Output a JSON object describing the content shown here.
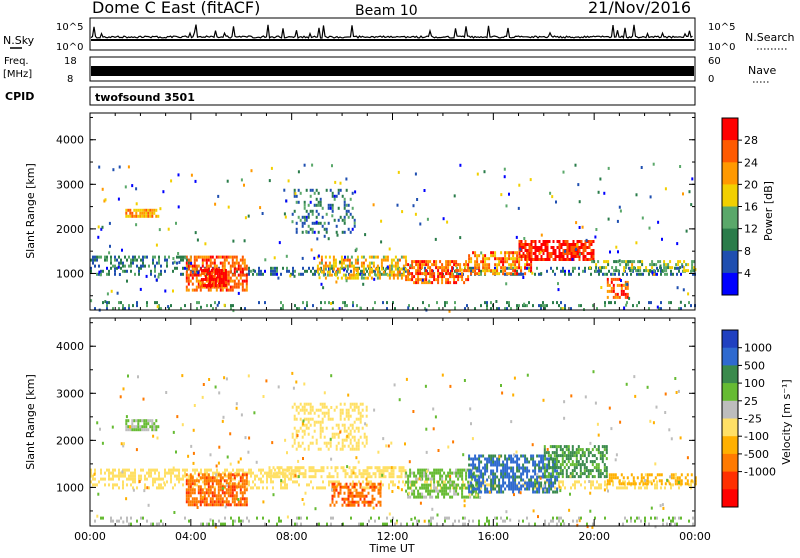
{
  "header": {
    "station": "Dome C East (fitACF)",
    "beam": "Beam 10",
    "date": "21/Nov/2016"
  },
  "panels": {
    "nsky_label": "N.Sky",
    "nsky_ticks": [
      "10^5",
      "10^0"
    ],
    "nsearch_label": "N.Search",
    "nsearch_ticks": [
      "10^5",
      "10^0"
    ],
    "freq_label_1": "Freq.",
    "freq_label_2": "[MHz]",
    "freq_ticks": [
      "18",
      "8"
    ],
    "nave_label": "Nave",
    "nave_ticks": [
      "60",
      "0"
    ],
    "cpid_label": "CPID",
    "cpid_value": "twofsound 3501"
  },
  "colors": {
    "power_scale": [
      "#0000ff",
      "#1f4fb0",
      "#2a7c4a",
      "#5aa86a",
      "#f2d000",
      "#ff9900",
      "#ff5a00",
      "#ff0000"
    ],
    "velocity_scale": [
      "#2040c0",
      "#2f6ad0",
      "#3a8a4c",
      "#66bb33",
      "#bdbdbd",
      "#ffe066",
      "#ffb000",
      "#ff7a00",
      "#ff3000",
      "#ff0000"
    ]
  },
  "chart_data": [
    {
      "type": "heatmap",
      "name": "power",
      "ylabel": "Slant Range [km]",
      "ylim": [
        180,
        4600
      ],
      "yticks": [
        "1000",
        "2000",
        "3000",
        "4000"
      ],
      "xlim": [
        "00:00",
        "24:00"
      ],
      "colorbar_label": "Power [dB]",
      "colorbar_ticks": [
        "4",
        "8",
        "12",
        "16",
        "20",
        "24",
        "28"
      ],
      "colorbar_range": [
        0,
        30
      ],
      "regions": [
        {
          "t0": 0.0,
          "t1": 24.0,
          "r0": 1000,
          "r1": 1150,
          "value": 8,
          "density": 0.35
        },
        {
          "t0": 0.0,
          "t1": 4.0,
          "r0": 1150,
          "r1": 1400,
          "value": 10,
          "density": 0.4
        },
        {
          "t0": 1.4,
          "t1": 2.7,
          "r0": 2250,
          "r1": 2450,
          "value": 20,
          "density": 0.8
        },
        {
          "t0": 3.8,
          "t1": 6.2,
          "r0": 600,
          "r1": 1400,
          "value": 24,
          "density": 0.7
        },
        {
          "t0": 4.4,
          "t1": 5.4,
          "r0": 700,
          "r1": 1100,
          "value": 28,
          "density": 0.8
        },
        {
          "t0": 8.0,
          "t1": 10.5,
          "r0": 1900,
          "r1": 2900,
          "value": 8,
          "density": 0.25
        },
        {
          "t0": 9.0,
          "t1": 12.5,
          "r0": 900,
          "r1": 1400,
          "value": 18,
          "density": 0.55
        },
        {
          "t0": 12.5,
          "t1": 15.0,
          "r0": 800,
          "r1": 1300,
          "value": 24,
          "density": 0.6
        },
        {
          "t0": 15.0,
          "t1": 17.5,
          "r0": 1000,
          "r1": 1500,
          "value": 22,
          "density": 0.6
        },
        {
          "t0": 17.0,
          "t1": 20.0,
          "r0": 1300,
          "r1": 1750,
          "value": 28,
          "density": 0.7
        },
        {
          "t0": 19.8,
          "t1": 24.0,
          "r0": 1050,
          "r1": 1300,
          "value": 14,
          "density": 0.45
        },
        {
          "t0": 20.5,
          "t1": 21.3,
          "r0": 450,
          "r1": 900,
          "value": 24,
          "density": 0.5
        },
        {
          "t0": 0.0,
          "t1": 24.0,
          "r0": 220,
          "r1": 380,
          "value": 10,
          "density": 0.2
        }
      ]
    },
    {
      "type": "heatmap",
      "name": "velocity",
      "ylabel": "Slant Range [km]",
      "xlabel": "Time UT",
      "ylim": [
        180,
        4600
      ],
      "yticks": [
        "1000",
        "2000",
        "3000",
        "4000"
      ],
      "xticks": [
        "00:00",
        "04:00",
        "08:00",
        "12:00",
        "16:00",
        "20:00",
        "00:00"
      ],
      "xlim": [
        "00:00",
        "24:00"
      ],
      "colorbar_label": "Velocity [m s⁻¹]",
      "colorbar_ticks": [
        "1000",
        "500",
        "100",
        "25",
        "-25",
        "-100",
        "-500",
        "-1000"
      ],
      "regions": [
        {
          "t0": 0.0,
          "t1": 24.0,
          "r0": 1000,
          "r1": 1150,
          "value": 0,
          "density": 0.35
        },
        {
          "t0": 0.0,
          "t1": 8.0,
          "r0": 1200,
          "r1": 1400,
          "value": 0,
          "density": 0.55
        },
        {
          "t0": 1.4,
          "t1": 2.7,
          "r0": 2250,
          "r1": 2450,
          "value": 100,
          "density": 0.8
        },
        {
          "t0": 3.8,
          "t1": 6.2,
          "r0": 600,
          "r1": 1300,
          "value": -200,
          "density": 0.7
        },
        {
          "t0": 8.0,
          "t1": 11.0,
          "r0": 1800,
          "r1": 2800,
          "value": 0,
          "density": 0.35
        },
        {
          "t0": 7.0,
          "t1": 12.5,
          "r0": 1200,
          "r1": 1450,
          "value": 0,
          "density": 0.55
        },
        {
          "t0": 9.5,
          "t1": 11.5,
          "r0": 600,
          "r1": 1100,
          "value": -200,
          "density": 0.55
        },
        {
          "t0": 12.5,
          "t1": 15.5,
          "r0": 800,
          "r1": 1400,
          "value": 150,
          "density": 0.6
        },
        {
          "t0": 15.0,
          "t1": 18.5,
          "r0": 900,
          "r1": 1700,
          "value": 600,
          "density": 0.65
        },
        {
          "t0": 18.0,
          "t1": 20.5,
          "r0": 1200,
          "r1": 1900,
          "value": 300,
          "density": 0.6
        },
        {
          "t0": 20.5,
          "t1": 24.0,
          "r0": 1050,
          "r1": 1300,
          "value": -60,
          "density": 0.45
        },
        {
          "t0": 0.0,
          "t1": 24.0,
          "r0": 220,
          "r1": 380,
          "value": 100,
          "density": 0.2
        }
      ]
    }
  ]
}
